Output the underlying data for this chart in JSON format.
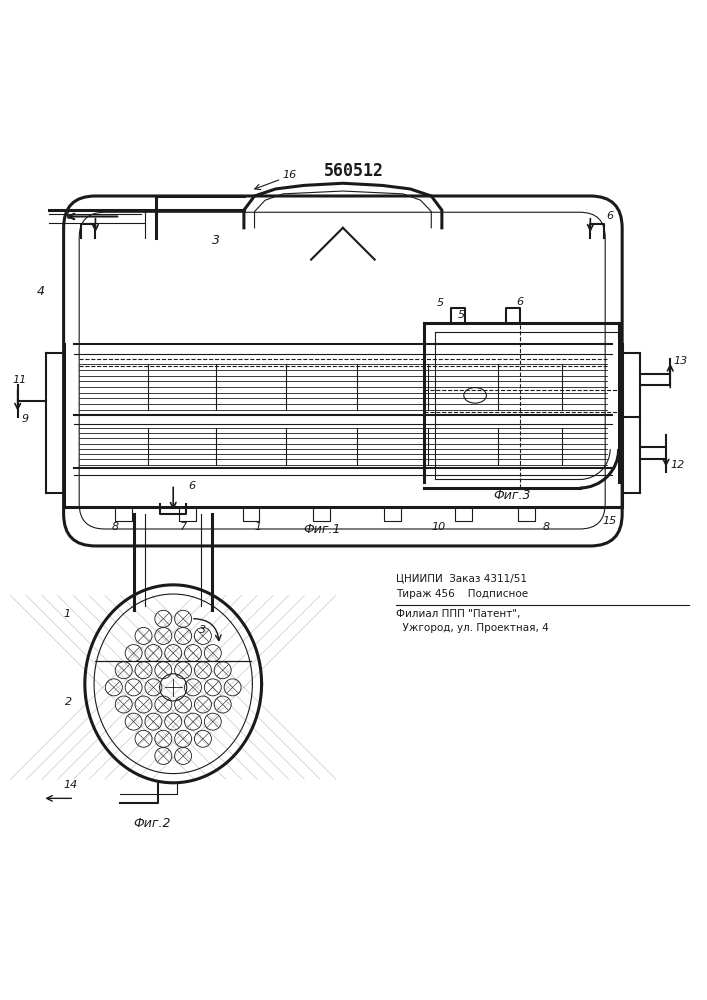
{
  "title": "560512",
  "background_color": "#ffffff",
  "line_color": "#1a1a1a",
  "fig1_label": "Фиг.1",
  "fig2_label": "Фиг.2",
  "fig3_label": "Фиг.3",
  "publisher_line1": "ЦНИИПИ  Заказ 4311/51",
  "publisher_line2": "Тираж 456    Подписное",
  "publisher_line3": "Филиал ППП \"Патент\",",
  "publisher_line4": "  Ужгород, ул. Проектная, 4"
}
